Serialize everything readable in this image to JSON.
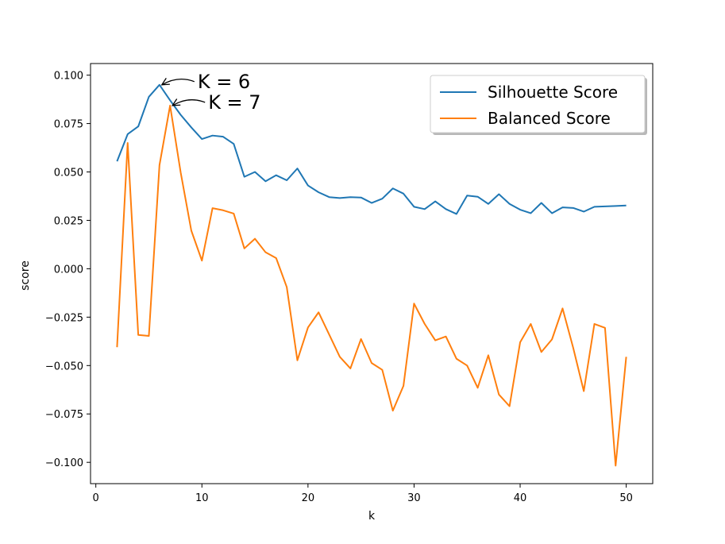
{
  "chart_data": {
    "type": "line",
    "title": "",
    "xlabel": "k",
    "ylabel": "score",
    "xlim": [
      -0.5,
      52.5
    ],
    "ylim": [
      -0.111,
      0.106
    ],
    "xticks": [
      0,
      10,
      20,
      30,
      40,
      50
    ],
    "yticks": [
      -0.1,
      -0.075,
      -0.05,
      -0.025,
      0.0,
      0.025,
      0.05,
      0.075,
      0.1
    ],
    "xtick_labels": [
      "0",
      "10",
      "20",
      "30",
      "40",
      "50"
    ],
    "ytick_labels": [
      "−0.100",
      "−0.075",
      "−0.050",
      "−0.025",
      "0.000",
      "0.025",
      "0.050",
      "0.075",
      "0.100"
    ],
    "grid": false,
    "legend_position": "top-right",
    "x": [
      2,
      3,
      4,
      5,
      6,
      7,
      8,
      9,
      10,
      11,
      12,
      13,
      14,
      15,
      16,
      17,
      18,
      19,
      20,
      21,
      22,
      23,
      24,
      25,
      26,
      27,
      28,
      29,
      30,
      31,
      32,
      33,
      34,
      35,
      36,
      37,
      38,
      39,
      40,
      41,
      42,
      43,
      44,
      45,
      46,
      47,
      48,
      49,
      50
    ],
    "series": [
      {
        "name": "Silhouette Score",
        "color": "#1f77b4",
        "values": [
          0.0555,
          0.0695,
          0.0735,
          0.0888,
          0.095,
          0.087,
          0.0795,
          0.073,
          0.067,
          0.0688,
          0.0682,
          0.0645,
          0.0475,
          0.05,
          0.0452,
          0.0483,
          0.0457,
          0.0518,
          0.043,
          0.0395,
          0.037,
          0.0365,
          0.037,
          0.0368,
          0.034,
          0.0362,
          0.0415,
          0.0388,
          0.032,
          0.0308,
          0.0348,
          0.0308,
          0.0283,
          0.0378,
          0.0372,
          0.0335,
          0.0385,
          0.0335,
          0.0305,
          0.0287,
          0.034,
          0.0287,
          0.0317,
          0.0314,
          0.0295,
          0.032,
          0.0322,
          0.0324,
          0.0327
        ]
      },
      {
        "name": "Balanced Score",
        "color": "#ff7f0e",
        "values": [
          -0.0405,
          0.065,
          -0.0342,
          -0.0347,
          0.0535,
          0.0843,
          0.0497,
          0.0197,
          0.0042,
          0.0313,
          0.0302,
          0.0285,
          0.0105,
          0.0155,
          0.0085,
          0.0055,
          -0.0095,
          -0.0473,
          -0.0303,
          -0.0225,
          -0.034,
          -0.0455,
          -0.0515,
          -0.0363,
          -0.0487,
          -0.0522,
          -0.0733,
          -0.0605,
          -0.018,
          -0.0285,
          -0.037,
          -0.035,
          -0.0465,
          -0.05,
          -0.0615,
          -0.0447,
          -0.065,
          -0.071,
          -0.038,
          -0.0285,
          -0.043,
          -0.0365,
          -0.0205,
          -0.0408,
          -0.0632,
          -0.0285,
          -0.0305,
          -0.1017,
          -0.0455
        ]
      }
    ],
    "annotations": [
      {
        "text": "K = 6",
        "x": 6,
        "y": 0.095
      },
      {
        "text": "K = 7",
        "x": 7,
        "y": 0.0843
      }
    ]
  }
}
